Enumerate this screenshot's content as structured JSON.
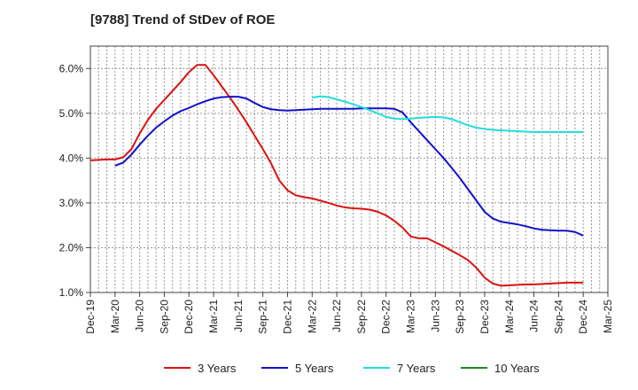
{
  "chart_data": {
    "type": "line",
    "title": "[9788]  Trend of StDev of ROE",
    "xlabel": "",
    "ylabel": "",
    "y_tick_labels": [
      "1.0%",
      "2.0%",
      "3.0%",
      "4.0%",
      "5.0%",
      "6.0%"
    ],
    "y_tick_values": [
      1.0,
      2.0,
      3.0,
      4.0,
      5.0,
      6.0
    ],
    "ylim": [
      1.0,
      6.5
    ],
    "x_tick_labels": [
      "Dec-19",
      "Mar-20",
      "Jun-20",
      "Sep-20",
      "Dec-20",
      "Mar-21",
      "Jun-21",
      "Sep-21",
      "Dec-21",
      "Mar-22",
      "Jun-22",
      "Sep-22",
      "Dec-22",
      "Mar-23",
      "Jun-23",
      "Sep-23",
      "Dec-23",
      "Mar-24",
      "Jun-24",
      "Sep-24",
      "Dec-24",
      "Mar-25"
    ],
    "x_unit": "month",
    "xlim": [
      "2019-12",
      "2025-03"
    ],
    "grid": true,
    "legend_position": "bottom",
    "series": [
      {
        "name": "3 Years",
        "color": "#dd1111",
        "points": [
          [
            "2019-12",
            3.95
          ],
          [
            "2020-01",
            3.96
          ],
          [
            "2020-02",
            3.97
          ],
          [
            "2020-03",
            3.97
          ],
          [
            "2020-04",
            4.02
          ],
          [
            "2020-05",
            4.2
          ],
          [
            "2020-06",
            4.55
          ],
          [
            "2020-07",
            4.85
          ],
          [
            "2020-08",
            5.1
          ],
          [
            "2020-09",
            5.3
          ],
          [
            "2020-10",
            5.5
          ],
          [
            "2020-11",
            5.7
          ],
          [
            "2020-12",
            5.92
          ],
          [
            "2021-01",
            6.08
          ],
          [
            "2021-02",
            6.08
          ],
          [
            "2021-03",
            5.85
          ],
          [
            "2021-04",
            5.6
          ],
          [
            "2021-05",
            5.35
          ],
          [
            "2021-06",
            5.08
          ],
          [
            "2021-07",
            4.8
          ],
          [
            "2021-08",
            4.5
          ],
          [
            "2021-09",
            4.2
          ],
          [
            "2021-10",
            3.88
          ],
          [
            "2021-11",
            3.5
          ],
          [
            "2021-12",
            3.28
          ],
          [
            "2022-01",
            3.17
          ],
          [
            "2022-02",
            3.13
          ],
          [
            "2022-03",
            3.1
          ],
          [
            "2022-04",
            3.05
          ],
          [
            "2022-05",
            3.0
          ],
          [
            "2022-06",
            2.94
          ],
          [
            "2022-07",
            2.9
          ],
          [
            "2022-08",
            2.88
          ],
          [
            "2022-09",
            2.87
          ],
          [
            "2022-10",
            2.85
          ],
          [
            "2022-11",
            2.8
          ],
          [
            "2022-12",
            2.72
          ],
          [
            "2023-01",
            2.6
          ],
          [
            "2023-02",
            2.45
          ],
          [
            "2023-03",
            2.25
          ],
          [
            "2023-04",
            2.21
          ],
          [
            "2023-05",
            2.21
          ],
          [
            "2023-06",
            2.12
          ],
          [
            "2023-07",
            2.03
          ],
          [
            "2023-08",
            1.93
          ],
          [
            "2023-09",
            1.83
          ],
          [
            "2023-10",
            1.72
          ],
          [
            "2023-11",
            1.55
          ],
          [
            "2023-12",
            1.33
          ],
          [
            "2024-01",
            1.2
          ],
          [
            "2024-02",
            1.15
          ],
          [
            "2024-03",
            1.16
          ],
          [
            "2024-04",
            1.17
          ],
          [
            "2024-05",
            1.18
          ],
          [
            "2024-06",
            1.18
          ],
          [
            "2024-07",
            1.19
          ],
          [
            "2024-08",
            1.2
          ],
          [
            "2024-09",
            1.21
          ],
          [
            "2024-10",
            1.22
          ],
          [
            "2024-11",
            1.22
          ],
          [
            "2024-12",
            1.22
          ]
        ]
      },
      {
        "name": "5 Years",
        "color": "#1111cc",
        "points": [
          [
            "2020-03",
            3.83
          ],
          [
            "2020-04",
            3.9
          ],
          [
            "2020-05",
            4.08
          ],
          [
            "2020-06",
            4.3
          ],
          [
            "2020-07",
            4.5
          ],
          [
            "2020-08",
            4.68
          ],
          [
            "2020-09",
            4.82
          ],
          [
            "2020-10",
            4.95
          ],
          [
            "2020-11",
            5.05
          ],
          [
            "2020-12",
            5.12
          ],
          [
            "2021-01",
            5.2
          ],
          [
            "2021-02",
            5.27
          ],
          [
            "2021-03",
            5.33
          ],
          [
            "2021-04",
            5.36
          ],
          [
            "2021-05",
            5.37
          ],
          [
            "2021-06",
            5.37
          ],
          [
            "2021-07",
            5.33
          ],
          [
            "2021-08",
            5.23
          ],
          [
            "2021-09",
            5.14
          ],
          [
            "2021-10",
            5.09
          ],
          [
            "2021-11",
            5.07
          ],
          [
            "2021-12",
            5.06
          ],
          [
            "2022-01",
            5.07
          ],
          [
            "2022-02",
            5.08
          ],
          [
            "2022-03",
            5.09
          ],
          [
            "2022-04",
            5.1
          ],
          [
            "2022-05",
            5.1
          ],
          [
            "2022-06",
            5.1
          ],
          [
            "2022-07",
            5.1
          ],
          [
            "2022-08",
            5.1
          ],
          [
            "2022-09",
            5.11
          ],
          [
            "2022-10",
            5.11
          ],
          [
            "2022-11",
            5.11
          ],
          [
            "2022-12",
            5.11
          ],
          [
            "2023-01",
            5.1
          ],
          [
            "2023-02",
            5.02
          ],
          [
            "2023-03",
            4.8
          ],
          [
            "2023-04",
            4.6
          ],
          [
            "2023-05",
            4.4
          ],
          [
            "2023-06",
            4.2
          ],
          [
            "2023-07",
            4.0
          ],
          [
            "2023-08",
            3.78
          ],
          [
            "2023-09",
            3.55
          ],
          [
            "2023-10",
            3.3
          ],
          [
            "2023-11",
            3.05
          ],
          [
            "2023-12",
            2.8
          ],
          [
            "2024-01",
            2.65
          ],
          [
            "2024-02",
            2.58
          ],
          [
            "2024-03",
            2.55
          ],
          [
            "2024-04",
            2.52
          ],
          [
            "2024-05",
            2.48
          ],
          [
            "2024-06",
            2.43
          ],
          [
            "2024-07",
            2.4
          ],
          [
            "2024-08",
            2.39
          ],
          [
            "2024-09",
            2.38
          ],
          [
            "2024-10",
            2.38
          ],
          [
            "2024-11",
            2.35
          ],
          [
            "2024-12",
            2.27
          ]
        ]
      },
      {
        "name": "7 Years",
        "color": "#22dddd",
        "points": [
          [
            "2022-03",
            5.35
          ],
          [
            "2022-04",
            5.38
          ],
          [
            "2022-05",
            5.36
          ],
          [
            "2022-06",
            5.31
          ],
          [
            "2022-07",
            5.26
          ],
          [
            "2022-08",
            5.2
          ],
          [
            "2022-09",
            5.14
          ],
          [
            "2022-10",
            5.07
          ],
          [
            "2022-11",
            5.0
          ],
          [
            "2022-12",
            4.92
          ],
          [
            "2023-01",
            4.88
          ],
          [
            "2023-02",
            4.87
          ],
          [
            "2023-03",
            4.88
          ],
          [
            "2023-04",
            4.9
          ],
          [
            "2023-05",
            4.91
          ],
          [
            "2023-06",
            4.92
          ],
          [
            "2023-07",
            4.91
          ],
          [
            "2023-08",
            4.87
          ],
          [
            "2023-09",
            4.8
          ],
          [
            "2023-10",
            4.73
          ],
          [
            "2023-11",
            4.68
          ],
          [
            "2023-12",
            4.65
          ],
          [
            "2024-01",
            4.63
          ],
          [
            "2024-02",
            4.62
          ],
          [
            "2024-03",
            4.61
          ],
          [
            "2024-04",
            4.6
          ],
          [
            "2024-05",
            4.59
          ],
          [
            "2024-06",
            4.58
          ],
          [
            "2024-07",
            4.58
          ],
          [
            "2024-08",
            4.58
          ],
          [
            "2024-09",
            4.58
          ],
          [
            "2024-10",
            4.58
          ],
          [
            "2024-11",
            4.58
          ],
          [
            "2024-12",
            4.58
          ]
        ]
      },
      {
        "name": "10 Years",
        "color": "#228822",
        "points": []
      }
    ]
  }
}
